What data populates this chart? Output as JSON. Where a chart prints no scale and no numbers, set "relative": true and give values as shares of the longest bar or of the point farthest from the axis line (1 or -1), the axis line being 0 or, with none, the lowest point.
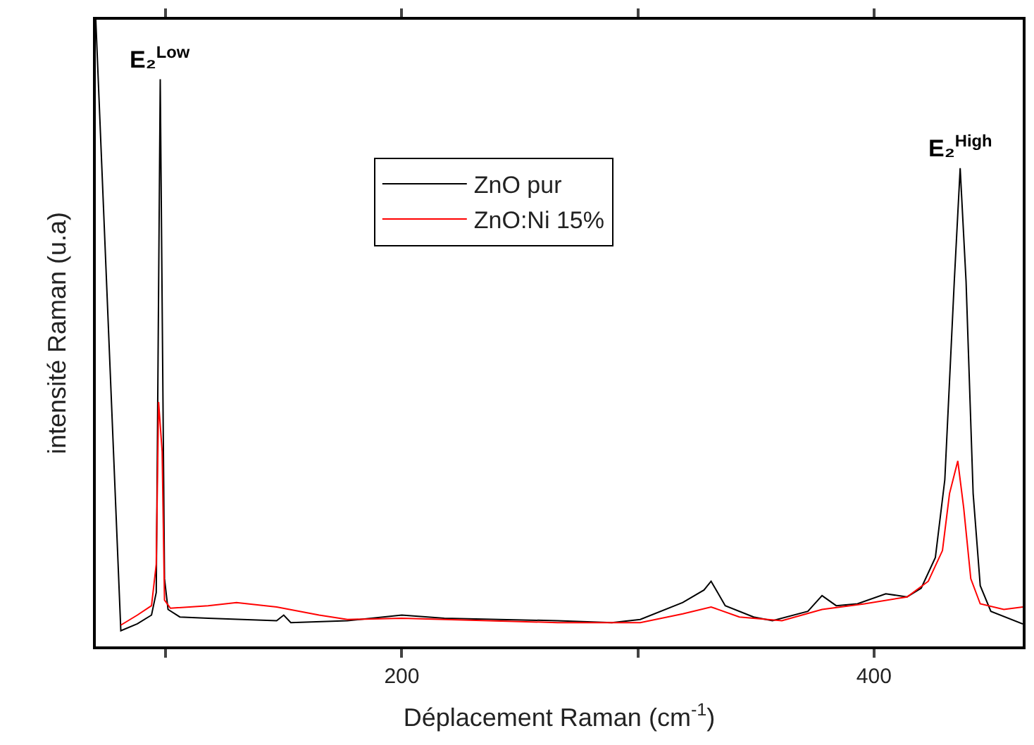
{
  "chart_data": {
    "type": "line",
    "relative": true,
    "xlabel": "Déplacement Raman (cm$^{-1}$)",
    "ylabel": "intensité Raman (u.a)",
    "xlim": [
      70.4,
      463
    ],
    "xticks": [
      {
        "value": 100,
        "label": null
      },
      200,
      {
        "value": 300,
        "label": null
      },
      400
    ],
    "legend": "top",
    "marker": "none",
    "line_style": "solid",
    "annotations": [
      {
        "text": "E₂$^{Low}$",
        "x": 97.7,
        "y": 0.905
      },
      {
        "text": "E₂$^{High}$",
        "x": 436.5,
        "y": 0.763
      }
    ],
    "series": [
      {
        "name": "ZnO pur",
        "color": "#000000",
        "x": [
          70.4,
          81,
          88,
          94,
          96,
          97.7,
          99.5,
          101,
          106,
          118,
          147,
          150,
          153,
          177,
          200,
          218,
          266,
          289,
          301,
          319,
          328,
          331,
          337,
          349,
          357,
          372,
          378,
          384,
          393,
          405,
          414,
          420,
          426,
          430,
          434,
          436.5,
          439,
          442,
          445,
          449.5,
          463
        ],
        "values": [
          1.0,
          0.025,
          0.036,
          0.05,
          0.086,
          0.905,
          0.108,
          0.059,
          0.047,
          0.045,
          0.041,
          0.05,
          0.038,
          0.041,
          0.05,
          0.045,
          0.041,
          0.038,
          0.043,
          0.07,
          0.09,
          0.104,
          0.065,
          0.047,
          0.041,
          0.056,
          0.081,
          0.065,
          0.068,
          0.084,
          0.079,
          0.093,
          0.142,
          0.266,
          0.582,
          0.763,
          0.582,
          0.244,
          0.097,
          0.056,
          0.036
        ]
      },
      {
        "name": "ZnO:Ni 15%",
        "color": "#ff0000",
        "x": [
          81,
          88,
          94,
          96,
          97,
          98.5,
          99.5,
          102,
          118,
          130,
          147,
          165,
          177,
          200,
          266,
          301,
          319,
          331,
          343,
          361,
          378,
          396,
          414,
          423,
          429,
          432,
          435.5,
          438,
          441,
          445,
          455,
          463
        ],
        "values": [
          0.034,
          0.05,
          0.065,
          0.131,
          0.39,
          0.311,
          0.074,
          0.061,
          0.065,
          0.07,
          0.063,
          0.05,
          0.043,
          0.045,
          0.038,
          0.038,
          0.052,
          0.063,
          0.047,
          0.041,
          0.059,
          0.068,
          0.079,
          0.104,
          0.153,
          0.244,
          0.296,
          0.221,
          0.108,
          0.068,
          0.059,
          0.063
        ]
      }
    ]
  }
}
